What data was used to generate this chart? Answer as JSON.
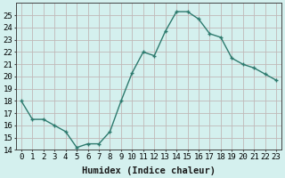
{
  "x": [
    0,
    1,
    2,
    3,
    4,
    5,
    6,
    7,
    8,
    9,
    10,
    11,
    12,
    13,
    14,
    15,
    16,
    17,
    18,
    19,
    20,
    21,
    22,
    23
  ],
  "y": [
    18.0,
    16.5,
    16.5,
    16.0,
    15.5,
    14.2,
    14.5,
    14.5,
    15.5,
    18.0,
    20.3,
    22.0,
    21.7,
    23.7,
    25.3,
    25.3,
    24.7,
    23.5,
    23.2,
    21.5,
    21.0,
    20.7,
    20.2,
    19.7
  ],
  "line_color": "#2d7a6e",
  "marker_color": "#2d7a6e",
  "bg_color": "#d4f0ee",
  "grid_color": "#c0b8b8",
  "xlabel": "Humidex (Indice chaleur)",
  "ylim": [
    14,
    26
  ],
  "yticks": [
    14,
    15,
    16,
    17,
    18,
    19,
    20,
    21,
    22,
    23,
    24,
    25
  ],
  "xticks": [
    0,
    1,
    2,
    3,
    4,
    5,
    6,
    7,
    8,
    9,
    10,
    11,
    12,
    13,
    14,
    15,
    16,
    17,
    18,
    19,
    20,
    21,
    22,
    23
  ],
  "xlabel_fontsize": 7.5,
  "tick_fontsize": 6.5,
  "line_width": 1.0,
  "marker_size": 3.0,
  "xlim": [
    -0.5,
    23.5
  ]
}
